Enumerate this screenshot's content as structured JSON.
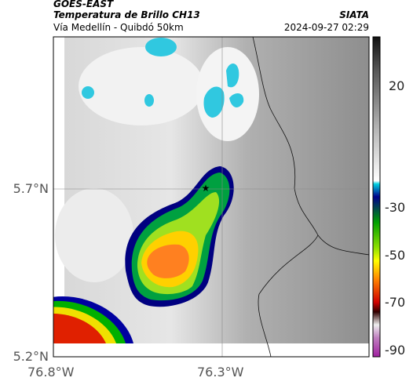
{
  "header": {
    "satellite": "GOES-EAST",
    "product": "Temperatura de Brillo CH13",
    "route": "Vía Medellín - Quibdó 50km",
    "source": "SIATA",
    "timestamp": "2024-09-27 02:29"
  },
  "map": {
    "lat_ticks": [
      "5.7°N",
      "5.2°N"
    ],
    "lon_ticks": [
      "76.8°W",
      "76.3°W"
    ]
  },
  "colorbar": {
    "ticks": [
      "20",
      "-30",
      "-50",
      "-70",
      "-90"
    ]
  }
}
